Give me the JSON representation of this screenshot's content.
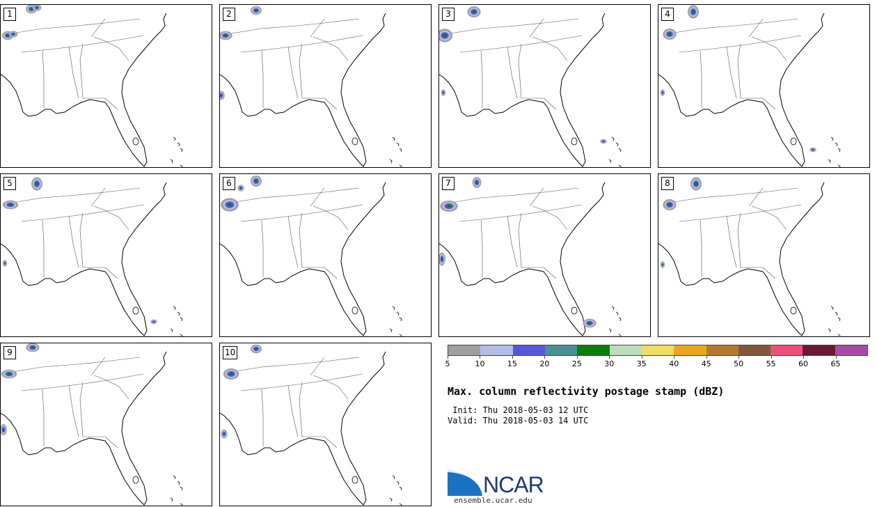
{
  "panels": [
    {
      "label": "1"
    },
    {
      "label": "2"
    },
    {
      "label": "3"
    },
    {
      "label": "4"
    },
    {
      "label": "5"
    },
    {
      "label": "6"
    },
    {
      "label": "7"
    },
    {
      "label": "8"
    },
    {
      "label": "9"
    },
    {
      "label": "10"
    }
  ],
  "colorbar": {
    "colors": [
      "#a0a0a0",
      "#b4bde8",
      "#5757d9",
      "#4a9096",
      "#0a7f0a",
      "#bcdcbc",
      "#efdc62",
      "#eca71f",
      "#b5792d",
      "#84573a",
      "#ee4f78",
      "#691936",
      "#a84aa6"
    ],
    "tick_labels": [
      "5",
      "10",
      "15",
      "20",
      "25",
      "30",
      "35",
      "40",
      "45",
      "50",
      "55",
      "60",
      "65"
    ]
  },
  "title": "Max. column reflectivity postage stamp (dBZ)",
  "init": " Init: Thu 2018-05-03 12 UTC",
  "valid": "Valid: Thu 2018-05-03 14 UTC",
  "logo": {
    "text": "NCAR",
    "website": "ensemble.ucar.edu"
  }
}
